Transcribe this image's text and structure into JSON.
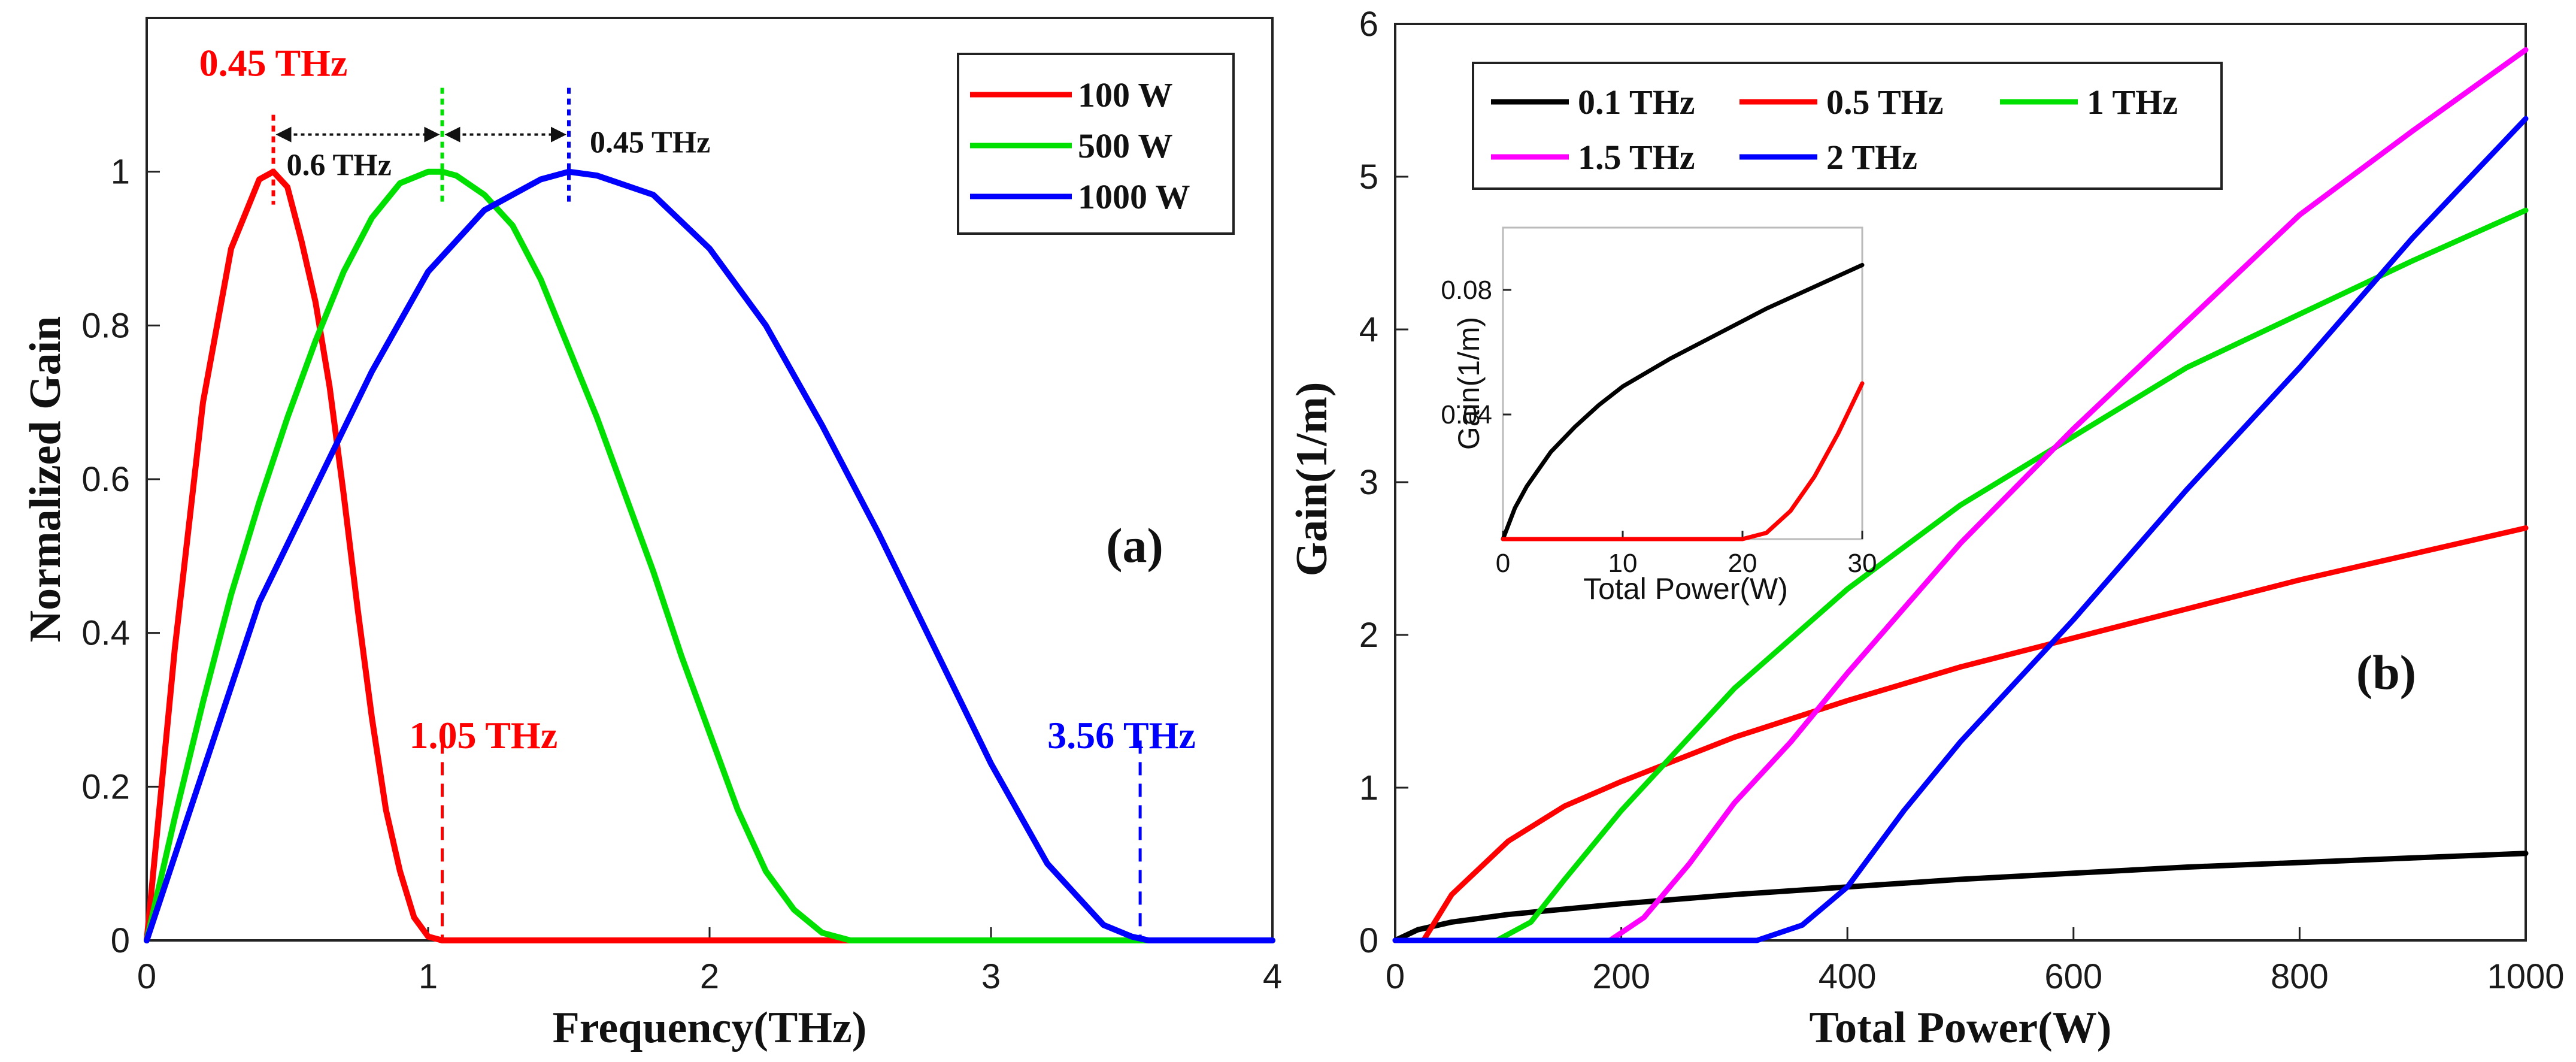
{
  "chart_data": [
    {
      "id": "a",
      "type": "line",
      "panel_label": "(a)",
      "xlabel": "Frequency(THz)",
      "ylabel": "Normalized Gain",
      "xlim": [
        0,
        4
      ],
      "ylim": [
        0,
        1.2
      ],
      "xticks": [
        0,
        1,
        2,
        3,
        4
      ],
      "xtick_labels": [
        "0",
        "1",
        "2",
        "3",
        "4"
      ],
      "yticks": [
        0,
        0.2,
        0.4,
        0.6,
        0.8,
        1
      ],
      "ytick_labels": [
        "0",
        "0.2",
        "0.4",
        "0.6",
        "0.8",
        "1"
      ],
      "legend": {
        "position": "top-right",
        "entries": [
          "100 W",
          "500 W",
          "1000 W"
        ]
      },
      "series": [
        {
          "name": "100 W",
          "color": "#ff0000",
          "x": [
            0,
            0.1,
            0.2,
            0.3,
            0.4,
            0.45,
            0.5,
            0.55,
            0.6,
            0.65,
            0.7,
            0.75,
            0.8,
            0.85,
            0.9,
            0.95,
            1.0,
            1.05,
            1.3,
            4.0
          ],
          "y": [
            0,
            0.38,
            0.7,
            0.9,
            0.99,
            1.0,
            0.98,
            0.91,
            0.83,
            0.72,
            0.58,
            0.43,
            0.29,
            0.17,
            0.09,
            0.03,
            0.005,
            0,
            0,
            0
          ]
        },
        {
          "name": "500 W",
          "color": "#00e000",
          "x": [
            0,
            0.1,
            0.2,
            0.3,
            0.4,
            0.5,
            0.6,
            0.7,
            0.8,
            0.9,
            1.0,
            1.05,
            1.1,
            1.2,
            1.3,
            1.4,
            1.5,
            1.6,
            1.7,
            1.8,
            1.9,
            2.0,
            2.1,
            2.2,
            2.3,
            2.4,
            2.5,
            3.0,
            3.5,
            4.0
          ],
          "y": [
            0,
            0.16,
            0.31,
            0.45,
            0.57,
            0.68,
            0.78,
            0.87,
            0.94,
            0.985,
            1.0,
            1.0,
            0.995,
            0.97,
            0.93,
            0.86,
            0.77,
            0.68,
            0.58,
            0.48,
            0.37,
            0.27,
            0.17,
            0.09,
            0.04,
            0.01,
            0,
            0,
            0,
            0
          ]
        },
        {
          "name": "1000 W",
          "color": "#0000ff",
          "x": [
            0,
            0.2,
            0.4,
            0.6,
            0.8,
            1.0,
            1.2,
            1.4,
            1.5,
            1.6,
            1.8,
            2.0,
            2.2,
            2.4,
            2.6,
            2.8,
            3.0,
            3.2,
            3.4,
            3.5,
            3.56,
            3.8,
            4.0
          ],
          "y": [
            0,
            0.22,
            0.44,
            0.59,
            0.74,
            0.87,
            0.95,
            0.99,
            1.0,
            0.995,
            0.97,
            0.9,
            0.8,
            0.67,
            0.53,
            0.38,
            0.23,
            0.1,
            0.02,
            0.005,
            0,
            0,
            0
          ]
        }
      ],
      "annotations": [
        {
          "text": "0.45 THz",
          "color": "#ff0000",
          "marker_x": 0.45
        },
        {
          "text": "0.6 THz",
          "color": "#111111",
          "between": [
            0.45,
            1.05
          ]
        },
        {
          "text": "0.45 THz",
          "color": "#111111",
          "between": [
            1.05,
            1.5
          ]
        },
        {
          "text": "1.05 THz",
          "color": "#ff0000",
          "marker_x": 1.05
        },
        {
          "text": "3.56 THz",
          "color": "#0000ff",
          "marker_x": 3.53
        }
      ]
    },
    {
      "id": "b",
      "type": "line",
      "panel_label": "(b)",
      "xlabel": "Total Power(W)",
      "ylabel": "Gain(1/m)",
      "xlim": [
        0,
        1000
      ],
      "ylim": [
        0,
        6
      ],
      "xticks": [
        0,
        200,
        400,
        600,
        800,
        1000
      ],
      "xtick_labels": [
        "0",
        "200",
        "400",
        "600",
        "800",
        "1000"
      ],
      "yticks": [
        0,
        1,
        2,
        3,
        4,
        5,
        6
      ],
      "ytick_labels": [
        "0",
        "1",
        "2",
        "3",
        "4",
        "5",
        "6"
      ],
      "legend": {
        "position": "top-left",
        "entries": [
          "0.1 THz",
          "0.5 THz",
          "1 THz",
          "1.5 THz",
          "2 THz"
        ]
      },
      "series": [
        {
          "name": "0.1 THz",
          "color": "#000000",
          "x": [
            0,
            20,
            50,
            100,
            200,
            300,
            400,
            500,
            600,
            700,
            800,
            900,
            1000
          ],
          "y": [
            0,
            0.07,
            0.12,
            0.17,
            0.24,
            0.3,
            0.35,
            0.4,
            0.44,
            0.48,
            0.51,
            0.54,
            0.57
          ]
        },
        {
          "name": "0.5 THz",
          "color": "#ff0000",
          "x": [
            0,
            25,
            50,
            100,
            150,
            200,
            300,
            400,
            500,
            600,
            700,
            800,
            900,
            1000
          ],
          "y": [
            0,
            0,
            0.3,
            0.65,
            0.88,
            1.04,
            1.33,
            1.57,
            1.79,
            1.98,
            2.17,
            2.36,
            2.53,
            2.7
          ]
        },
        {
          "name": "1 THz",
          "color": "#00e000",
          "x": [
            0,
            90,
            120,
            150,
            200,
            300,
            400,
            500,
            600,
            700,
            800,
            900,
            1000
          ],
          "y": [
            0,
            0,
            0.12,
            0.4,
            0.85,
            1.65,
            2.3,
            2.85,
            3.3,
            3.75,
            4.1,
            4.45,
            4.78
          ]
        },
        {
          "name": "1.5 THz",
          "color": "#ff00ff",
          "x": [
            0,
            190,
            220,
            260,
            300,
            350,
            400,
            500,
            600,
            700,
            800,
            900,
            1000
          ],
          "y": [
            0,
            0,
            0.15,
            0.5,
            0.9,
            1.3,
            1.75,
            2.6,
            3.35,
            4.05,
            4.75,
            5.3,
            5.83
          ]
        },
        {
          "name": "2 THz",
          "color": "#0000ff",
          "x": [
            0,
            320,
            360,
            400,
            450,
            500,
            550,
            600,
            700,
            800,
            900,
            1000
          ],
          "y": [
            0,
            0,
            0.1,
            0.35,
            0.85,
            1.3,
            1.7,
            2.1,
            2.95,
            3.75,
            4.6,
            5.38
          ]
        }
      ],
      "inset": {
        "type": "line",
        "xlabel": "Total Power(W)",
        "ylabel": "Gain(1/m)",
        "xlim": [
          0,
          30
        ],
        "ylim": [
          0,
          0.1
        ],
        "xticks": [
          0,
          10,
          20,
          30
        ],
        "xtick_labels": [
          "0",
          "10",
          "20",
          "30"
        ],
        "yticks": [
          0.04,
          0.08
        ],
        "ytick_labels": [
          "0.04",
          "0.08"
        ],
        "series": [
          {
            "name": "0.1 THz",
            "color": "#000000",
            "x": [
              0,
              1,
              2,
              4,
              6,
              8,
              10,
              14,
              18,
              22,
              26,
              30
            ],
            "y": [
              0,
              0.01,
              0.017,
              0.028,
              0.036,
              0.043,
              0.049,
              0.058,
              0.066,
              0.074,
              0.081,
              0.088
            ]
          },
          {
            "name": "0.5 THz",
            "color": "#ff0000",
            "x": [
              0,
              20,
              22,
              24,
              26,
              28,
              30
            ],
            "y": [
              0,
              0,
              0.002,
              0.009,
              0.02,
              0.034,
              0.05
            ]
          }
        ]
      }
    }
  ]
}
